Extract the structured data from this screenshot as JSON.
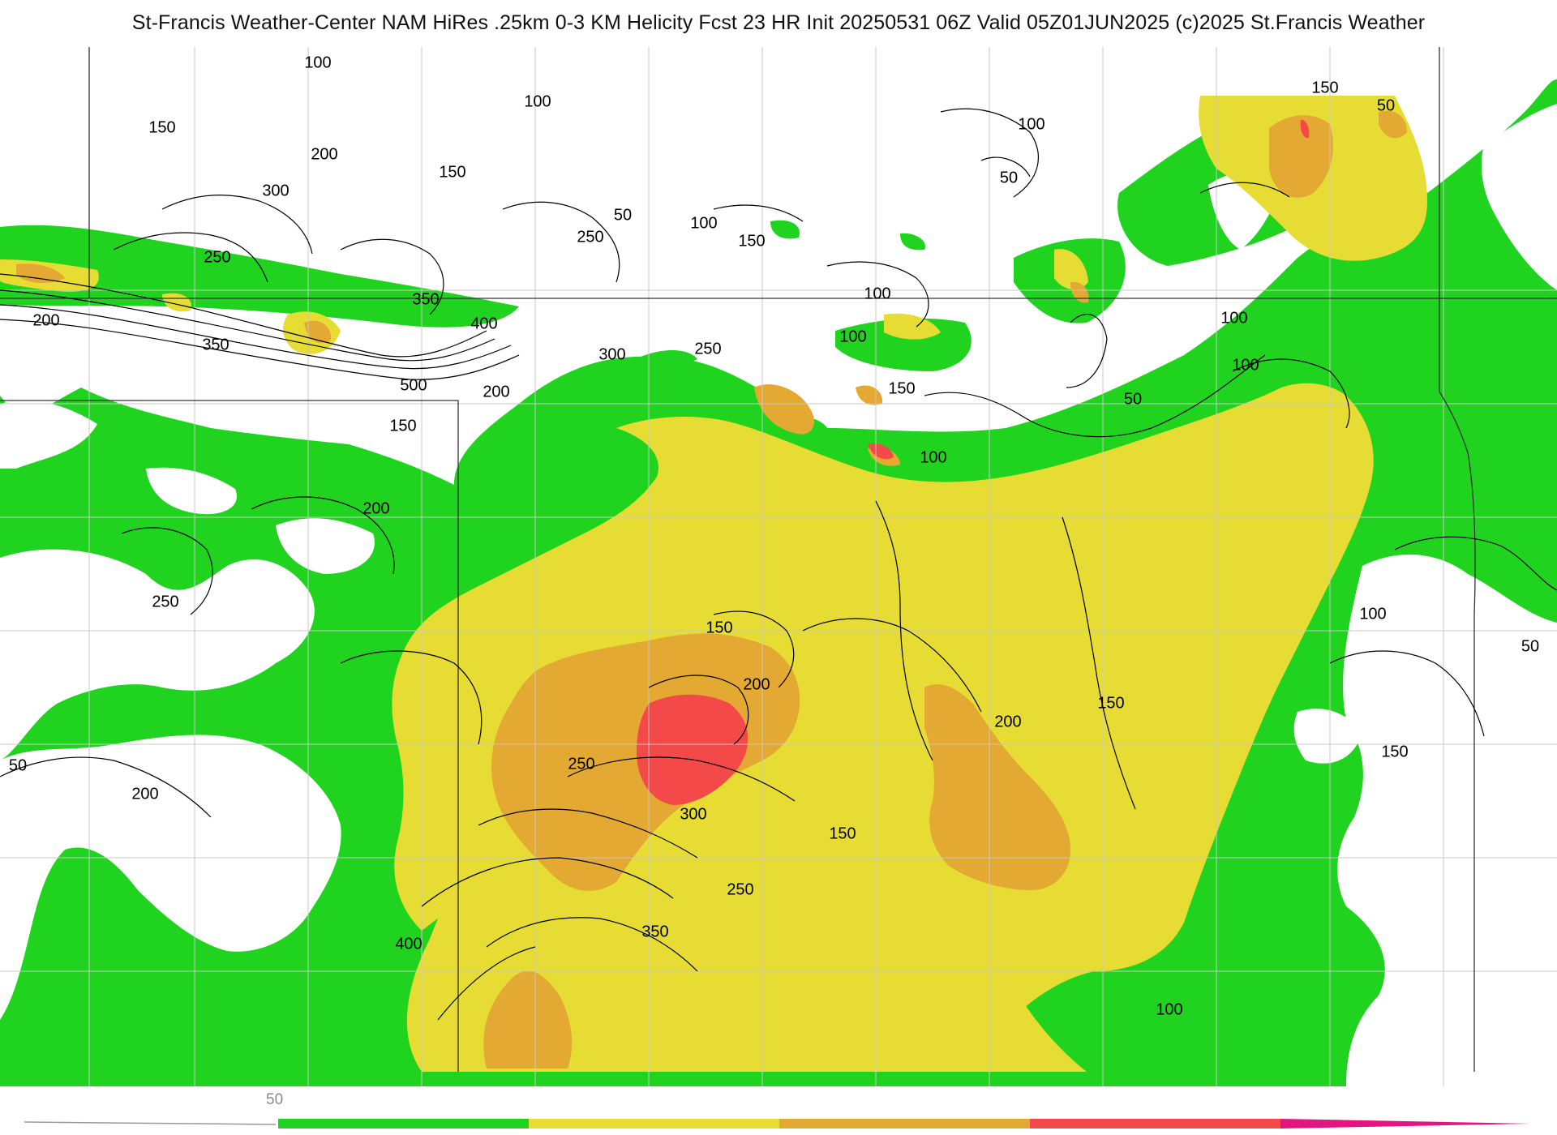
{
  "header": {
    "title": "St-Francis Weather-Center NAM HiRes .25km 0-3 KM Helicity Fcst 23 HR Init 20250531 06Z  Valid 05Z01JUN2025    (c)2025 St.Francis Weather"
  },
  "colors": {
    "background": "#ffffff",
    "band_50_150": "#1fd31f",
    "band_150_250": "#e6dc34",
    "band_250_350": "#e3a932",
    "band_350_450": "#f44949",
    "band_450_plus": "#e4157f",
    "contour": "#000000",
    "boundary": "#c8c8c8"
  },
  "contour_labels": [
    {
      "text": "100"
    },
    {
      "text": "100"
    },
    {
      "text": "150"
    },
    {
      "text": "200"
    },
    {
      "text": "150"
    },
    {
      "text": "300"
    },
    {
      "text": "50"
    },
    {
      "text": "100"
    },
    {
      "text": "250"
    },
    {
      "text": "150"
    },
    {
      "text": "250"
    },
    {
      "text": "350"
    },
    {
      "text": "400"
    },
    {
      "text": "200"
    },
    {
      "text": "350"
    },
    {
      "text": "300"
    },
    {
      "text": "250"
    },
    {
      "text": "500"
    },
    {
      "text": "200"
    },
    {
      "text": "150"
    },
    {
      "text": "50"
    },
    {
      "text": "100"
    },
    {
      "text": "150"
    },
    {
      "text": "100"
    },
    {
      "text": "200"
    },
    {
      "text": "100"
    },
    {
      "text": "50"
    },
    {
      "text": "150"
    },
    {
      "text": "100"
    },
    {
      "text": "100"
    },
    {
      "text": "100"
    },
    {
      "text": "50"
    },
    {
      "text": "250"
    },
    {
      "text": "150"
    },
    {
      "text": "200"
    },
    {
      "text": "250"
    },
    {
      "text": "300"
    },
    {
      "text": "200"
    },
    {
      "text": "150"
    },
    {
      "text": "100"
    },
    {
      "text": "50"
    },
    {
      "text": "200"
    },
    {
      "text": "150"
    },
    {
      "text": "250"
    },
    {
      "text": "350"
    },
    {
      "text": "400"
    },
    {
      "text": "100"
    },
    {
      "text": "150"
    },
    {
      "text": "50"
    }
  ],
  "legend": {
    "first_label": "50",
    "bands": [
      {
        "from": 50,
        "to": 150,
        "color": "#1fd31f"
      },
      {
        "from": 150,
        "to": 250,
        "color": "#e6dc34"
      },
      {
        "from": 250,
        "to": 350,
        "color": "#e3a932"
      },
      {
        "from": 350,
        "to": 450,
        "color": "#f44949"
      },
      {
        "from": 450,
        "to": 550,
        "color": "#e4157f"
      }
    ]
  }
}
